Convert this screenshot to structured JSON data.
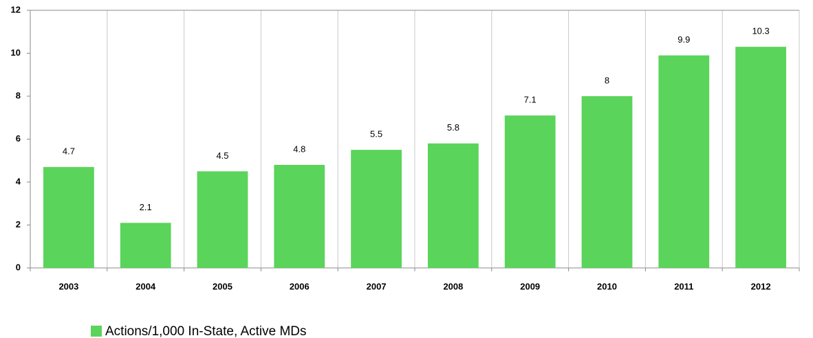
{
  "chart_data": {
    "type": "bar",
    "categories": [
      "2003",
      "2004",
      "2005",
      "2006",
      "2007",
      "2008",
      "2009",
      "2010",
      "2011",
      "2012"
    ],
    "series": [
      {
        "name": "Actions/1,000 In-State, Active MDs",
        "color": "#5ad45a",
        "values": [
          4.7,
          2.1,
          4.5,
          4.8,
          5.5,
          5.8,
          7.1,
          8,
          9.9,
          10.3
        ]
      }
    ],
    "ylim": [
      0,
      12
    ],
    "yticks": [
      0,
      2,
      4,
      6,
      8,
      10,
      12
    ],
    "grid": true
  }
}
